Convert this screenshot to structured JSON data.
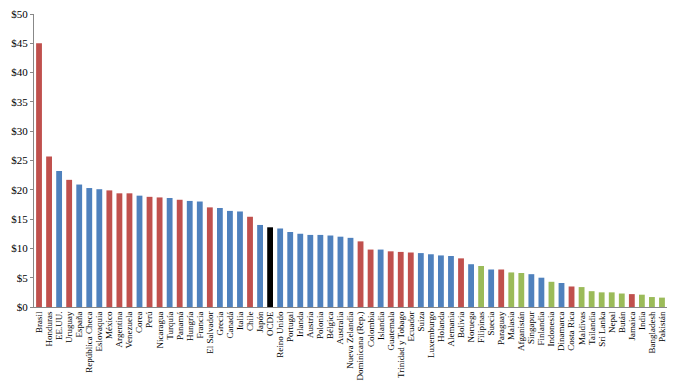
{
  "chart_data": {
    "type": "bar",
    "categories": [
      "Brasil",
      "Honduras",
      "EE.UU.",
      "Uruguay",
      "España",
      "República Checa",
      "Eslovaquia",
      "México",
      "Argentina",
      "Venezuela",
      "Corea",
      "Perú",
      "Nicaragua",
      "Turquía",
      "Panamá",
      "Hungría",
      "Francia",
      "El Salvador",
      "Grecia",
      "Canadá",
      "Italia",
      "Chile",
      "Japón",
      "OCDE",
      "Reino Unido",
      "Portugal",
      "Irlanda",
      "Austria",
      "Polonia",
      "Bélgica",
      "Australia",
      "Nueva Zelandia",
      "Dominicana (Rep.)",
      "Colombia",
      "Islandia",
      "Guatemala",
      "Trinidad y Tobago",
      "Ecuador",
      "Suiza",
      "Luxemburgo",
      "Holanda",
      "Alemania",
      "Bolivia",
      "Noruega",
      "Filipinas",
      "Suecia",
      "Paraguay",
      "Malasia",
      "Afganistán",
      "Singapur",
      "Finlandia",
      "Indonesia",
      "Dinamarca",
      "Costa Rica",
      "Maldivas",
      "Tailandia",
      "Sri Lanka",
      "Nepal",
      "Bután",
      "Jamaica",
      "India",
      "Bangladesh",
      "Pakistán"
    ],
    "values": [
      45.0,
      25.7,
      23.2,
      21.7,
      20.9,
      20.3,
      20.1,
      19.9,
      19.4,
      19.4,
      19.0,
      18.8,
      18.7,
      18.6,
      18.3,
      18.1,
      18.0,
      17.0,
      16.9,
      16.4,
      16.3,
      15.4,
      14.0,
      13.6,
      13.4,
      12.8,
      12.5,
      12.3,
      12.3,
      12.2,
      12.0,
      11.8,
      11.2,
      9.8,
      9.8,
      9.5,
      9.4,
      9.3,
      9.2,
      9.0,
      8.8,
      8.7,
      8.3,
      7.3,
      7.0,
      6.4,
      6.4,
      5.9,
      5.8,
      5.6,
      5.0,
      4.3,
      4.1,
      3.5,
      3.4,
      2.7,
      2.5,
      2.5,
      2.3,
      2.2,
      2.1,
      1.7,
      1.6
    ],
    "colors": [
      "#c0504d",
      "#c0504d",
      "#4f81bd",
      "#c0504d",
      "#4f81bd",
      "#4f81bd",
      "#4f81bd",
      "#c0504d",
      "#c0504d",
      "#c0504d",
      "#4f81bd",
      "#c0504d",
      "#c0504d",
      "#4f81bd",
      "#c0504d",
      "#4f81bd",
      "#4f81bd",
      "#c0504d",
      "#4f81bd",
      "#4f81bd",
      "#4f81bd",
      "#c0504d",
      "#4f81bd",
      "#000000",
      "#4f81bd",
      "#4f81bd",
      "#4f81bd",
      "#4f81bd",
      "#4f81bd",
      "#4f81bd",
      "#4f81bd",
      "#4f81bd",
      "#c0504d",
      "#c0504d",
      "#4f81bd",
      "#c0504d",
      "#c0504d",
      "#c0504d",
      "#4f81bd",
      "#4f81bd",
      "#4f81bd",
      "#4f81bd",
      "#c0504d",
      "#4f81bd",
      "#9bbb59",
      "#4f81bd",
      "#c0504d",
      "#9bbb59",
      "#9bbb59",
      "#4f81bd",
      "#4f81bd",
      "#9bbb59",
      "#4f81bd",
      "#c0504d",
      "#9bbb59",
      "#9bbb59",
      "#9bbb59",
      "#9bbb59",
      "#9bbb59",
      "#c0504d",
      "#9bbb59",
      "#9bbb59",
      "#9bbb59"
    ],
    "ylim": [
      0,
      50
    ],
    "yticks": [
      {
        "value": 0,
        "label": "$0"
      },
      {
        "value": 5,
        "label": "$5"
      },
      {
        "value": 10,
        "label": "$10"
      },
      {
        "value": 15,
        "label": "$15"
      },
      {
        "value": 20,
        "label": "$20"
      },
      {
        "value": 25,
        "label": "$25"
      },
      {
        "value": 30,
        "label": "$30"
      },
      {
        "value": 35,
        "label": "$35"
      },
      {
        "value": 40,
        "label": "$40"
      },
      {
        "value": 45,
        "label": "$45"
      },
      {
        "value": 50,
        "label": "$50"
      }
    ],
    "grid": false
  }
}
